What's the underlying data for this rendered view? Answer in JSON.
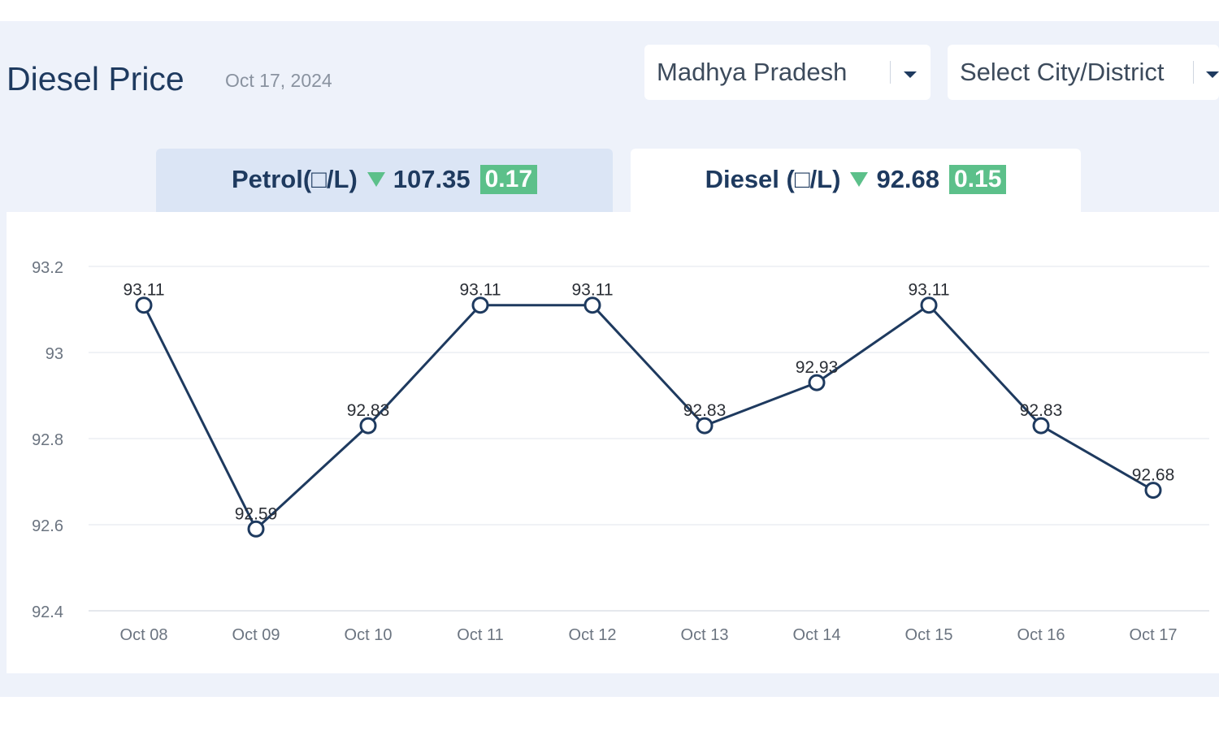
{
  "header": {
    "title": "Diesel Price",
    "date": "Oct 17, 2024"
  },
  "filters": {
    "state": "Madhya Pradesh",
    "city": "Select City/District"
  },
  "tabs": {
    "petrol": {
      "label": "Petrol(□/L)",
      "price": "107.35",
      "change": "0.17",
      "trend": "down"
    },
    "diesel": {
      "label": "Diesel (□/L)",
      "price": "92.68",
      "change": "0.15",
      "trend": "down",
      "active": true
    }
  },
  "colors": {
    "line": "#1e3a5f",
    "badge": "#5cc08a",
    "panel": "#eef2fa"
  },
  "chart_data": {
    "type": "line",
    "categories": [
      "Oct 08",
      "Oct 09",
      "Oct 10",
      "Oct 11",
      "Oct 12",
      "Oct 13",
      "Oct 14",
      "Oct 15",
      "Oct 16",
      "Oct 17"
    ],
    "values": [
      93.11,
      92.59,
      92.83,
      93.11,
      93.11,
      92.83,
      92.93,
      93.11,
      92.83,
      92.68
    ],
    "data_labels": [
      "93.11",
      "92.59",
      "92.83",
      "93.11",
      "93.11",
      "92.83",
      "92.93",
      "93.11",
      "92.83",
      "92.68"
    ],
    "yticks": [
      "93.2",
      "93",
      "92.8",
      "92.6",
      "92.4"
    ],
    "ylim": [
      92.4,
      93.2
    ],
    "grid": true,
    "title": "",
    "xlabel": "",
    "ylabel": ""
  }
}
